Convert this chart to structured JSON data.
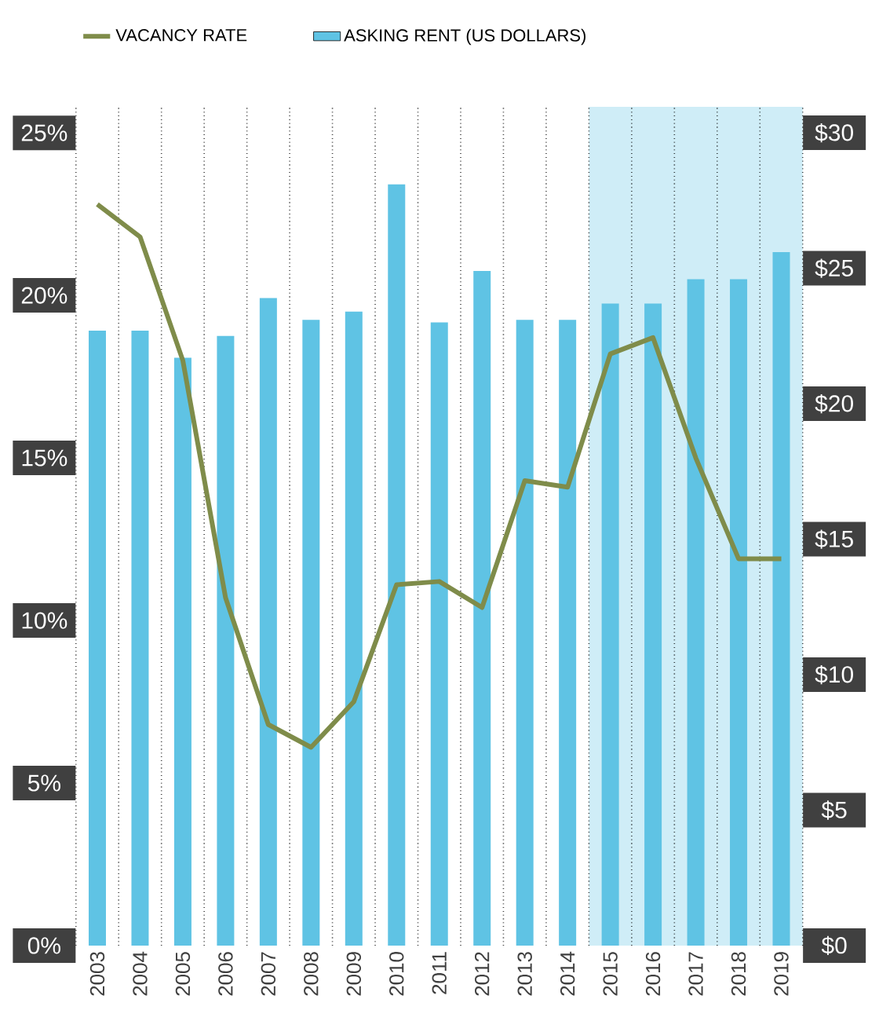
{
  "chart_data": {
    "type": "bar",
    "categories": [
      "2003",
      "2004",
      "2005",
      "2006",
      "2007",
      "2008",
      "2009",
      "2010",
      "2011",
      "2012",
      "2013",
      "2014",
      "2015",
      "2016",
      "2017",
      "2018",
      "2019"
    ],
    "series": [
      {
        "name": "VACANCY RATE",
        "type": "line",
        "color": "#7f8c4a",
        "values": [
          22.8,
          21.8,
          18.0,
          10.7,
          6.8,
          6.1,
          7.5,
          11.1,
          11.2,
          10.4,
          14.3,
          14.1,
          18.2,
          18.7,
          15.0,
          11.9,
          11.9
        ]
      },
      {
        "name": "ASKING RENT (US DOLLARS)",
        "axis": "y2",
        "color": "#5fc3e4",
        "values": [
          22.7,
          22.7,
          21.7,
          22.5,
          23.9,
          23.1,
          23.4,
          28.1,
          23.0,
          24.9,
          23.1,
          23.1,
          23.7,
          23.7,
          24.6,
          24.6,
          25.6
        ]
      }
    ],
    "ylim": [
      0,
      25.8
    ],
    "yticks": [
      {
        "value": 0,
        "label": "0%"
      },
      {
        "value": 5,
        "label": "5%"
      },
      {
        "value": 10,
        "label": "10%"
      },
      {
        "value": 15,
        "label": "15%"
      },
      {
        "value": 20,
        "label": "20%"
      },
      {
        "value": 25,
        "label": "25%"
      }
    ],
    "y2lim": [
      0,
      30.96
    ],
    "y2ticks": [
      {
        "value": 0,
        "label": "$0"
      },
      {
        "value": 5,
        "label": "$5"
      },
      {
        "value": 10,
        "label": "$10"
      },
      {
        "value": 15,
        "label": "$15"
      },
      {
        "value": 20,
        "label": "$20"
      },
      {
        "value": 25,
        "label": "$25"
      },
      {
        "value": 30,
        "label": "$30"
      }
    ],
    "bands": [
      {
        "axis": "x",
        "from": "2015",
        "to": "2019",
        "color": "#cfedf7"
      }
    ],
    "grid": "x",
    "legend": "top left",
    "line_style": "solid"
  }
}
